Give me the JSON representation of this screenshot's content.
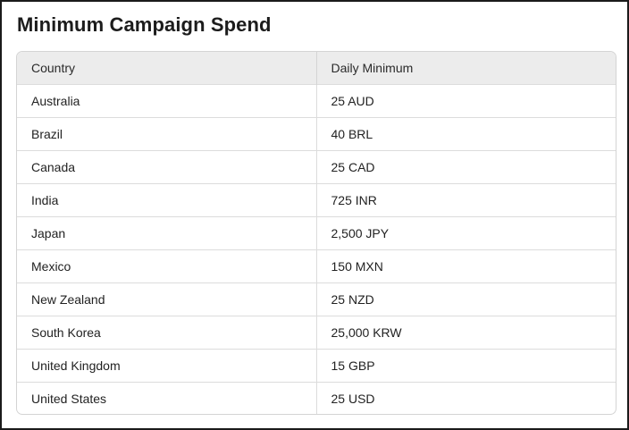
{
  "title": "Minimum Campaign Spend",
  "table": {
    "headers": [
      "Country",
      "Daily Minimum"
    ],
    "rows": [
      [
        "Australia",
        "25 AUD"
      ],
      [
        "Brazil",
        "40 BRL"
      ],
      [
        "Canada",
        "25 CAD"
      ],
      [
        "India",
        "725 INR"
      ],
      [
        "Japan",
        "2,500 JPY"
      ],
      [
        "Mexico",
        "150 MXN"
      ],
      [
        "New Zealand",
        "25 NZD"
      ],
      [
        "South Korea",
        "25,000 KRW"
      ],
      [
        "United Kingdom",
        "15 GBP"
      ],
      [
        "United States",
        "25 USD"
      ]
    ]
  }
}
